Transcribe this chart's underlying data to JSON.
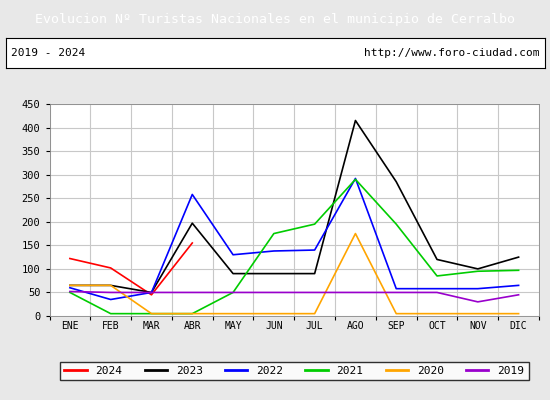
{
  "title": "Evolucion Nº Turistas Nacionales en el municipio de Cerralbo",
  "title_color": "#ffffff",
  "title_bg_color": "#4472c4",
  "subtitle_left": "2019 - 2024",
  "subtitle_right": "http://www.foro-ciudad.com",
  "months": [
    "ENE",
    "FEB",
    "MAR",
    "ABR",
    "MAY",
    "JUN",
    "JUL",
    "AGO",
    "SEP",
    "OCT",
    "NOV",
    "DIC"
  ],
  "ylim": [
    0,
    450
  ],
  "yticks": [
    0,
    50,
    100,
    150,
    200,
    250,
    300,
    350,
    400,
    450
  ],
  "series": {
    "2024": {
      "color": "#ff0000",
      "data": [
        122,
        102,
        45,
        155,
        null,
        null,
        null,
        null,
        null,
        null,
        null,
        null
      ]
    },
    "2023": {
      "color": "#000000",
      "data": [
        65,
        65,
        50,
        197,
        90,
        90,
        90,
        415,
        285,
        120,
        100,
        125
      ]
    },
    "2022": {
      "color": "#0000ff",
      "data": [
        60,
        35,
        50,
        258,
        130,
        138,
        140,
        292,
        58,
        58,
        58,
        65
      ]
    },
    "2021": {
      "color": "#00cc00",
      "data": [
        50,
        5,
        5,
        5,
        50,
        175,
        195,
        290,
        195,
        85,
        95,
        97
      ]
    },
    "2020": {
      "color": "#ffa500",
      "data": [
        65,
        65,
        5,
        5,
        5,
        5,
        5,
        175,
        5,
        5,
        5,
        5
      ]
    },
    "2019": {
      "color": "#9900cc",
      "data": [
        52,
        50,
        50,
        50,
        50,
        50,
        50,
        50,
        50,
        50,
        30,
        45
      ]
    }
  },
  "legend_order": [
    "2024",
    "2023",
    "2022",
    "2021",
    "2020",
    "2019"
  ],
  "grid_color": "#c8c8c8",
  "bg_color": "#e8e8e8",
  "plot_bg_color": "#e8e8e8",
  "chart_bg_color": "#ffffff",
  "border_color": "#000000",
  "font_family": "monospace"
}
